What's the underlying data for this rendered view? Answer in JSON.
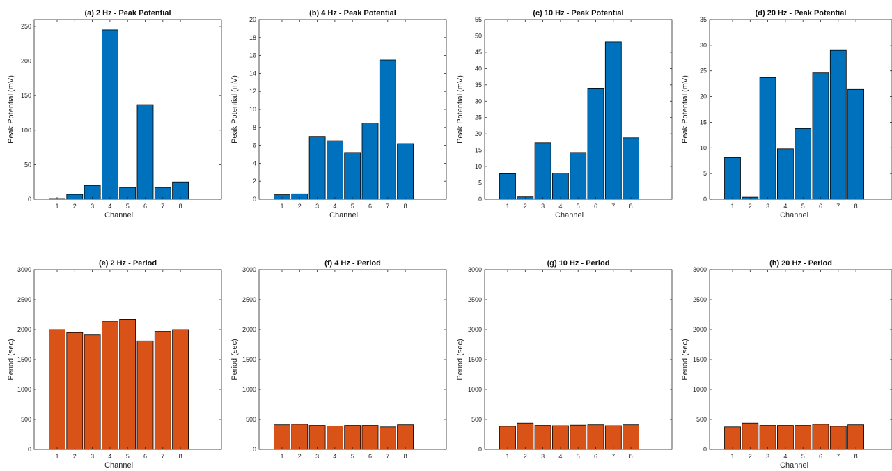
{
  "colors": {
    "peak": "#0072BD",
    "period": "#D95319",
    "axis": "#262626",
    "bar_edge": "#000000"
  },
  "chart_data": [
    {
      "type": "bar",
      "title": "(a) 2 Hz - Peak Potential",
      "xlabel": "Channel",
      "ylabel": "Peak Potential (mV)",
      "categories": [
        "1",
        "2",
        "3",
        "4",
        "5",
        "6",
        "7",
        "8"
      ],
      "values": [
        1,
        7,
        20,
        245,
        17,
        137,
        17,
        25
      ],
      "ylim": [
        0,
        260
      ],
      "yticks": [
        0,
        50,
        100,
        150,
        200,
        250
      ],
      "ytick_labels": [
        "0",
        "50",
        "100",
        "150",
        "200",
        "250"
      ],
      "color": "#0072BD"
    },
    {
      "type": "bar",
      "title": "(b) 4 Hz - Peak Potential",
      "xlabel": "Channel",
      "ylabel": "Peak Potential (mV)",
      "categories": [
        "1",
        "2",
        "3",
        "4",
        "5",
        "6",
        "7",
        "8"
      ],
      "values": [
        0.5,
        0.6,
        7.0,
        6.5,
        5.2,
        8.5,
        15.5,
        6.2
      ],
      "ylim": [
        0,
        20
      ],
      "yticks": [
        0,
        2,
        4,
        6,
        8,
        10,
        12,
        14,
        16,
        18,
        20
      ],
      "ytick_labels": [
        "0",
        "2",
        "4",
        "6",
        "8",
        "10",
        "12",
        "14",
        "16",
        "18",
        "20"
      ],
      "color": "#0072BD"
    },
    {
      "type": "bar",
      "title": "(c) 10 Hz - Peak Potential",
      "xlabel": "Channel",
      "ylabel": "Peak Potential (mV)",
      "categories": [
        "1",
        "2",
        "3",
        "4",
        "5",
        "6",
        "7",
        "8"
      ],
      "values": [
        7.8,
        0.7,
        17.3,
        8.0,
        14.3,
        33.8,
        48.2,
        18.8
      ],
      "ylim": [
        0,
        55
      ],
      "yticks": [
        0,
        5,
        10,
        15,
        20,
        25,
        30,
        35,
        40,
        45,
        50,
        55
      ],
      "ytick_labels": [
        "0",
        "5",
        "10",
        "15",
        "20",
        "25",
        "30",
        "35",
        "40",
        "45",
        "50",
        "55"
      ],
      "color": "#0072BD"
    },
    {
      "type": "bar",
      "title": "(d) 20 Hz - Peak Potential",
      "xlabel": "Channel",
      "ylabel": "Peak Potential (mV)",
      "categories": [
        "1",
        "2",
        "3",
        "4",
        "5",
        "6",
        "7",
        "8"
      ],
      "values": [
        8.1,
        0.4,
        23.7,
        9.8,
        13.8,
        24.6,
        29.0,
        21.4
      ],
      "ylim": [
        0,
        35
      ],
      "yticks": [
        0,
        5,
        10,
        15,
        20,
        25,
        30,
        35
      ],
      "ytick_labels": [
        "0",
        "5",
        "10",
        "15",
        "20",
        "25",
        "30",
        "35"
      ],
      "color": "#0072BD"
    },
    {
      "type": "bar",
      "title": "(e) 2 Hz - Period",
      "xlabel": "Channel",
      "ylabel": "Period (sec)",
      "categories": [
        "1",
        "2",
        "3",
        "4",
        "5",
        "6",
        "7",
        "8"
      ],
      "values": [
        2000,
        1950,
        1910,
        2140,
        2170,
        1810,
        1970,
        2000
      ],
      "ylim": [
        0,
        3000
      ],
      "yticks": [
        0,
        500,
        1000,
        1500,
        2000,
        2500,
        3000
      ],
      "ytick_labels": [
        "0",
        "500",
        "1000",
        "1500",
        "2000",
        "2500",
        "3000"
      ],
      "color": "#D95319"
    },
    {
      "type": "bar",
      "title": "(f) 4 Hz - Period",
      "xlabel": "",
      "ylabel": "Period (sec)",
      "categories": [
        "1",
        "2",
        "3",
        "4",
        "5",
        "6",
        "7",
        "8"
      ],
      "values": [
        410,
        420,
        400,
        390,
        400,
        400,
        375,
        410
      ],
      "ylim": [
        0,
        3000
      ],
      "yticks": [
        0,
        500,
        1000,
        1500,
        2000,
        2500,
        3000
      ],
      "ytick_labels": [
        "0",
        "500",
        "1000",
        "1500",
        "2000",
        "2500",
        "3000"
      ],
      "color": "#D95319"
    },
    {
      "type": "bar",
      "title": "(g) 10 Hz - Period",
      "xlabel": "",
      "ylabel": "Period (sec)",
      "categories": [
        "1",
        "2",
        "3",
        "4",
        "5",
        "6",
        "7",
        "8"
      ],
      "values": [
        385,
        440,
        400,
        395,
        405,
        410,
        395,
        410
      ],
      "ylim": [
        0,
        3000
      ],
      "yticks": [
        0,
        500,
        1000,
        1500,
        2000,
        2500,
        3000
      ],
      "ytick_labels": [
        "0",
        "500",
        "1000",
        "1500",
        "2000",
        "2500",
        "3000"
      ],
      "color": "#D95319"
    },
    {
      "type": "bar",
      "title": "(h) 20 Hz - Period",
      "xlabel": "Channel",
      "ylabel": "Period (sec)",
      "categories": [
        "1",
        "2",
        "3",
        "4",
        "5",
        "6",
        "7",
        "8"
      ],
      "values": [
        375,
        440,
        400,
        400,
        400,
        420,
        385,
        410
      ],
      "ylim": [
        0,
        3000
      ],
      "yticks": [
        0,
        500,
        1000,
        1500,
        2000,
        2500,
        3000
      ],
      "ytick_labels": [
        "0",
        "500",
        "1000",
        "1500",
        "2000",
        "2500",
        "3000"
      ],
      "color": "#D95319"
    }
  ]
}
